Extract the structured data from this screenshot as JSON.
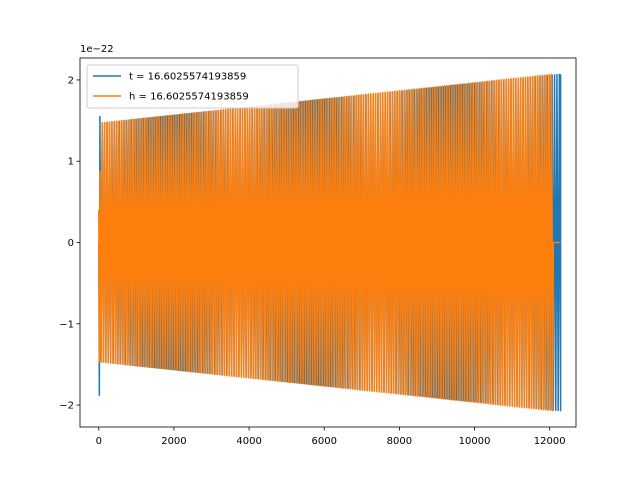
{
  "chart_data": {
    "type": "line",
    "title": "",
    "xlabel": "",
    "ylabel": "",
    "y_offset_label": "1e−22",
    "xlim": [
      -500,
      12700
    ],
    "ylim": [
      -2.27,
      2.27
    ],
    "xticks": [
      0,
      2000,
      4000,
      6000,
      8000,
      10000,
      12000
    ],
    "xtick_labels": [
      "0",
      "2000",
      "4000",
      "6000",
      "8000",
      "10000",
      "12000"
    ],
    "yticks": [
      -2,
      -1,
      0,
      1,
      2
    ],
    "ytick_labels": [
      "−2",
      "−1",
      "0",
      "1",
      "2"
    ],
    "grid": false,
    "legend_position": "top-left",
    "series": [
      {
        "name": "t = 16.6025574193859",
        "color": "#1f77b4",
        "x_start": 0,
        "x_end": 12290,
        "start_value": 0.0,
        "start_spike_max": 1.55,
        "start_spike_min": -1.88,
        "envelope_start": 1.47,
        "envelope_end": 2.07,
        "cycles": 190,
        "end_value": 2.07
      },
      {
        "name": "h = 16.6025574193859",
        "color": "#ff7f0e",
        "x_start": 0,
        "x_end": 12290,
        "start_value": 0.4,
        "start_spike_max": 0.87,
        "start_spike_min": -1.47,
        "envelope_start": 1.47,
        "envelope_end": 2.07,
        "cycles": 190,
        "signal_end_x": 12080,
        "tail_value": 0.0
      }
    ]
  }
}
